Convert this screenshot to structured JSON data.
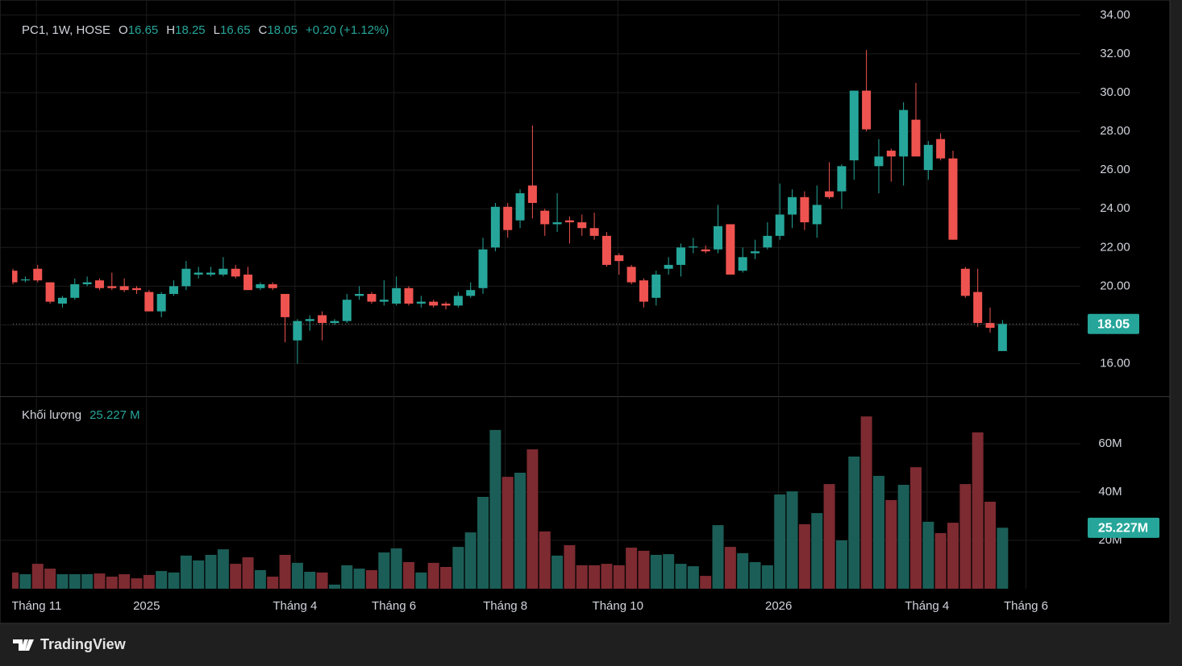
{
  "chart_data": {
    "type": "candlestick",
    "symbol": "PC1, 1W, HOSE",
    "ohlc_labels": [
      "O",
      "H",
      "L",
      "C"
    ],
    "change_text": "+0.20 (+1.12%)",
    "volume_title": "Khối lượng",
    "last_volume_label": "25.227 M",
    "last_volume_tag": "25.227M",
    "brand": "TradingView",
    "up_color": "#26a69a",
    "down_color": "#ef5350",
    "volume_up_color": "#1b5e57",
    "volume_down_color": "#7d2a31",
    "grid": true,
    "series": {
      "open": [
        20.8,
        20.3,
        20.9,
        20.2,
        19.1,
        19.4,
        20.1,
        20.3,
        20.0,
        20.0,
        19.9,
        19.7,
        18.7,
        19.6,
        20.0,
        20.6,
        20.6,
        20.6,
        20.9,
        20.6,
        19.9,
        20.1,
        19.6,
        17.2,
        18.2,
        18.5,
        18.1,
        18.2,
        19.5,
        19.6,
        19.2,
        19.1,
        19.9,
        19.1,
        19.2,
        19.1,
        19.0,
        19.5,
        19.9,
        22.0,
        24.1,
        23.4,
        25.2,
        23.9,
        23.2,
        23.4,
        23.3,
        23.0,
        22.6,
        21.6,
        21.0,
        20.3,
        19.4,
        20.9,
        21.1,
        22.0,
        21.9,
        21.9,
        23.2,
        20.8,
        21.7,
        22.0,
        22.6,
        23.7,
        24.6,
        23.2,
        24.9,
        24.9,
        26.5,
        30.1,
        26.2,
        27.0,
        26.7,
        28.6,
        26.0,
        27.6,
        26.6,
        20.9,
        19.7,
        18.1,
        16.65
      ],
      "high": [
        20.9,
        20.5,
        21.1,
        20.2,
        19.5,
        20.4,
        20.5,
        20.4,
        20.7,
        20.4,
        20.0,
        19.8,
        19.7,
        20.3,
        21.3,
        21.0,
        21.0,
        21.5,
        21.1,
        21.0,
        20.2,
        20.2,
        19.6,
        18.3,
        18.5,
        18.7,
        18.3,
        19.6,
        20.0,
        19.7,
        20.3,
        20.5,
        20.0,
        19.5,
        19.3,
        19.2,
        19.7,
        20.2,
        22.5,
        24.3,
        24.3,
        25.0,
        28.3,
        24.0,
        24.8,
        23.6,
        23.7,
        23.8,
        22.8,
        21.7,
        21.1,
        20.4,
        20.8,
        21.5,
        22.2,
        22.5,
        22.1,
        24.2,
        23.2,
        22.0,
        22.4,
        23.3,
        25.3,
        25.0,
        24.9,
        25.2,
        26.4,
        26.3,
        30.1,
        32.2,
        27.6,
        27.1,
        29.5,
        30.5,
        27.5,
        27.9,
        27.0,
        21.0,
        20.9,
        18.9,
        18.25
      ],
      "low": [
        20.1,
        20.2,
        20.2,
        19.1,
        18.9,
        19.3,
        20.0,
        19.8,
        19.8,
        19.7,
        19.6,
        18.7,
        18.4,
        19.5,
        19.8,
        20.4,
        20.5,
        20.5,
        20.4,
        19.8,
        19.8,
        19.8,
        17.1,
        16.0,
        17.7,
        17.2,
        18.0,
        18.1,
        19.3,
        19.1,
        19.0,
        19.0,
        19.0,
        18.9,
        18.9,
        18.8,
        18.9,
        19.4,
        19.6,
        21.8,
        22.5,
        23.0,
        23.5,
        22.6,
        22.8,
        22.2,
        22.6,
        22.4,
        21.0,
        20.6,
        20.1,
        18.9,
        19.0,
        20.6,
        20.5,
        21.7,
        21.7,
        21.7,
        20.6,
        20.7,
        21.4,
        21.9,
        22.4,
        23.0,
        22.9,
        22.5,
        24.5,
        24.0,
        25.5,
        28.0,
        24.8,
        25.4,
        25.2,
        26.7,
        25.5,
        26.5,
        22.4,
        19.4,
        17.9,
        17.6,
        16.65
      ],
      "close": [
        20.2,
        20.35,
        20.3,
        19.2,
        19.4,
        20.1,
        20.2,
        19.9,
        19.9,
        19.8,
        19.8,
        18.7,
        19.6,
        20.0,
        20.9,
        20.7,
        20.7,
        20.9,
        20.5,
        19.8,
        20.1,
        19.9,
        18.4,
        18.2,
        18.3,
        18.1,
        18.2,
        19.3,
        19.6,
        19.2,
        19.3,
        19.9,
        19.1,
        19.2,
        19.0,
        19.0,
        19.5,
        19.8,
        21.9,
        24.1,
        22.9,
        24.8,
        24.3,
        23.2,
        23.3,
        23.3,
        23.0,
        22.6,
        21.1,
        21.3,
        20.2,
        19.2,
        20.6,
        21.1,
        22.0,
        22.05,
        21.8,
        23.1,
        20.6,
        21.5,
        21.8,
        22.6,
        23.7,
        24.6,
        23.3,
        24.2,
        24.6,
        26.2,
        30.1,
        28.1,
        26.7,
        26.7,
        29.1,
        26.7,
        27.3,
        26.6,
        22.4,
        19.5,
        18.1,
        17.85,
        18.05
      ],
      "volume": [
        6.7,
        6.0,
        10.3,
        8.3,
        6,
        6,
        6,
        6.3,
        5,
        6,
        4.3,
        5.7,
        7.3,
        6.7,
        13.7,
        11.7,
        14,
        16.3,
        10.3,
        13,
        7.7,
        5,
        14,
        10.7,
        7,
        6.7,
        1.7,
        9.7,
        8.3,
        7.7,
        15,
        16.7,
        11,
        6.7,
        10.7,
        9,
        17.3,
        23.3,
        38,
        65.7,
        46.3,
        48,
        57.7,
        23.7,
        13.7,
        18,
        9.7,
        9.7,
        10.3,
        9.7,
        17,
        15.7,
        14,
        14.3,
        10.3,
        9.3,
        5.3,
        26.3,
        17.3,
        14.7,
        11,
        9.7,
        39,
        40.3,
        26.7,
        31.3,
        43.3,
        20,
        54.7,
        71.3,
        46.7,
        36.7,
        43,
        50.3,
        27.7,
        23,
        27.3,
        43.3,
        64.7,
        36,
        25.227
      ]
    },
    "xlim": [
      -0.07,
      86.3
    ],
    "xticks": [
      {
        "value": 1.9,
        "label": "Tháng 11"
      },
      {
        "value": 10.8,
        "label": "2025"
      },
      {
        "value": 22.8,
        "label": "Tháng 4"
      },
      {
        "value": 30.8,
        "label": "Tháng 6"
      },
      {
        "value": 39.8,
        "label": "Tháng 8"
      },
      {
        "value": 48.9,
        "label": "Tháng 10"
      },
      {
        "value": 61.9,
        "label": "2026"
      },
      {
        "value": 73.9,
        "label": "Tháng 4"
      },
      {
        "value": 81.9,
        "label": "Tháng 6"
      }
    ],
    "ylim": [
      14.4,
      34.2
    ],
    "yticks": [
      {
        "value": 16,
        "label": "16.00"
      },
      {
        "value": 18,
        "label": "18.00"
      },
      {
        "value": 20,
        "label": "20.00"
      },
      {
        "value": 22,
        "label": "22.00"
      },
      {
        "value": 24,
        "label": "24.00"
      },
      {
        "value": 26,
        "label": "26.00"
      },
      {
        "value": 28,
        "label": "28.00"
      },
      {
        "value": 30,
        "label": "30.00"
      },
      {
        "value": 32,
        "label": "32.00"
      },
      {
        "value": 34,
        "label": "34.00"
      }
    ],
    "y2lim": [
      0,
      78
    ],
    "y2ticks": [
      {
        "value": 20,
        "label": "20M"
      },
      {
        "value": 40,
        "label": "40M"
      },
      {
        "value": 60,
        "label": "60M"
      }
    ]
  }
}
